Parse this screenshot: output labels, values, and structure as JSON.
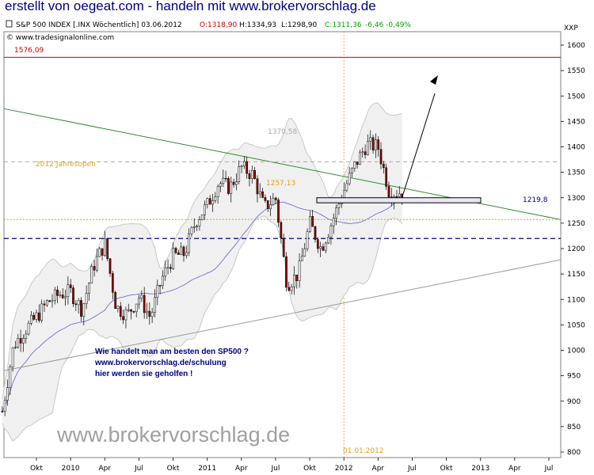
{
  "banner": "erstellt von oegeat.com - handeln mit www.brokervorschlag.de",
  "header": {
    "symbol": "S&P 500 INDEX [.INX Wöchentlich] 03.06.2012",
    "open": "O:1318,90",
    "high": "H:1334,93",
    "low": "L:1298,90",
    "close": "C:1311,36",
    "change": "-6,46 -0,49%",
    "source": "© www.tradesignalonline.com",
    "axis_tag": "XXP"
  },
  "colors": {
    "up": "#ffffff",
    "down": "#8b0000",
    "bollinger": "#c8c8c8",
    "ma": "#7070d0",
    "trend_green": "#2e8b2e",
    "support_grey": "#999999",
    "level_red": "#cc0000",
    "level_blue": "#000099",
    "orange": "#e0a020",
    "annotation": "#000080"
  },
  "annotations": {
    "level_1576": "1576,09",
    "level_1370": "1370,58",
    "level_1257": "1257,13",
    "level_1219": "1219,8",
    "jahresopen": "2012 Jahresopen",
    "date_marker": "01.01.2012",
    "text_line1": "Wie handelt man am besten den SP500 ?",
    "text_line2": "www.brokervorschlag.de/schulung",
    "text_line3": "hier werden sie geholfen !",
    "watermark": "www.brokervorschlag.de"
  },
  "chart_data": {
    "type": "candlestick",
    "title": "S&P 500 INDEX [.INX Wöchentlich]",
    "ylim": [
      800,
      1640
    ],
    "y_ticks": [
      800,
      850,
      900,
      950,
      1000,
      1050,
      1100,
      1150,
      1200,
      1250,
      1300,
      1350,
      1400,
      1450,
      1500,
      1550,
      1600
    ],
    "x_ticks": [
      "Okt",
      "2010",
      "Apr",
      "Jul",
      "Okt",
      "2011",
      "Apr",
      "Jul",
      "Okt",
      "2012",
      "Apr",
      "Jul",
      "Okt",
      "2013",
      "Apr",
      "Jul"
    ],
    "horizontal_levels": [
      {
        "value": 1576.09,
        "label": "1576,09",
        "style": "solid-red"
      },
      {
        "value": 1370.58,
        "label": "1370,58",
        "style": "dashed-grey"
      },
      {
        "value": 1257.13,
        "label": "1257,13",
        "style": "dotted-orange"
      },
      {
        "value": 1219.8,
        "label": "1219,8",
        "style": "dashed-blue"
      }
    ],
    "close_path": [
      [
        "2009-07",
        880
      ],
      [
        "2009-08",
        1010
      ],
      [
        "2009-09",
        1040
      ],
      [
        "2009-10",
        1065
      ],
      [
        "2009-11",
        1095
      ],
      [
        "2009-12",
        1110
      ],
      [
        "2010-01",
        1115
      ],
      [
        "2010-02",
        1080
      ],
      [
        "2010-03",
        1165
      ],
      [
        "2010-04",
        1210
      ],
      [
        "2010-05",
        1085
      ],
      [
        "2010-06",
        1070
      ],
      [
        "2010-07",
        1105
      ],
      [
        "2010-08",
        1065
      ],
      [
        "2010-09",
        1140
      ],
      [
        "2010-10",
        1185
      ],
      [
        "2010-11",
        1190
      ],
      [
        "2010-12",
        1255
      ],
      [
        "2011-01",
        1285
      ],
      [
        "2011-02",
        1330
      ],
      [
        "2011-03",
        1320
      ],
      [
        "2011-04",
        1360
      ],
      [
        "2011-05",
        1345
      ],
      [
        "2011-06",
        1280
      ],
      [
        "2011-07",
        1300
      ],
      [
        "2011-08",
        1130
      ],
      [
        "2011-09",
        1150
      ],
      [
        "2011-10",
        1250
      ],
      [
        "2011-11",
        1200
      ],
      [
        "2011-12",
        1255
      ],
      [
        "2012-01",
        1315
      ],
      [
        "2012-02",
        1365
      ],
      [
        "2012-03",
        1405
      ],
      [
        "2012-04",
        1400
      ],
      [
        "2012-05",
        1310
      ],
      [
        "2012-06",
        1311
      ]
    ]
  }
}
